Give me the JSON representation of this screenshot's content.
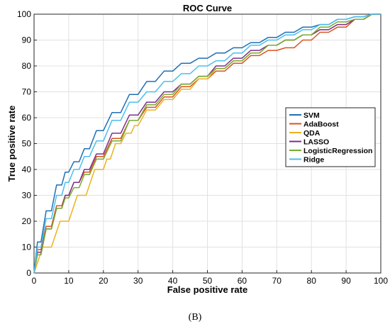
{
  "chart_data": {
    "type": "line",
    "title": "ROC Curve",
    "xlabel": "False positive rate",
    "ylabel": "True positive rate",
    "xlim": [
      0,
      100
    ],
    "ylim": [
      0,
      100
    ],
    "xticks": [
      0,
      10,
      20,
      30,
      40,
      50,
      60,
      70,
      80,
      90,
      100
    ],
    "yticks": [
      0,
      10,
      20,
      30,
      40,
      50,
      60,
      70,
      80,
      90,
      100
    ],
    "grid": true,
    "legend_position": "right",
    "series": [
      {
        "name": "SVM",
        "color": "#1f6fb4",
        "x": [
          0,
          2,
          5,
          8,
          10,
          13,
          16,
          20,
          25,
          30,
          35,
          40,
          45,
          50,
          55,
          60,
          65,
          70,
          75,
          80,
          85,
          90,
          95,
          100
        ],
        "y": [
          0,
          12,
          24,
          34,
          39,
          43,
          48,
          55,
          62,
          69,
          74,
          78,
          81,
          83,
          85,
          87,
          89,
          91,
          93,
          95,
          96,
          98,
          99,
          100
        ]
      },
      {
        "name": "AdaBoost",
        "color": "#d9531e",
        "x": [
          0,
          2,
          5,
          8,
          10,
          13,
          16,
          20,
          25,
          30,
          35,
          40,
          45,
          50,
          55,
          60,
          65,
          70,
          75,
          80,
          85,
          90,
          95,
          100
        ],
        "y": [
          0,
          9,
          18,
          26,
          30,
          35,
          39,
          45,
          52,
          59,
          64,
          68,
          72,
          75,
          78,
          81,
          84,
          86,
          87,
          90,
          93,
          95,
          98,
          100
        ]
      },
      {
        "name": "QDA",
        "color": "#edb120",
        "x": [
          0,
          5,
          10,
          15,
          20,
          22,
          25,
          28,
          30,
          35,
          40,
          45,
          50,
          55,
          60,
          65,
          70,
          75,
          80,
          85,
          90,
          95,
          100
        ],
        "y": [
          0,
          10,
          20,
          30,
          40,
          44,
          50,
          54,
          57,
          63,
          67,
          71,
          75,
          79,
          82,
          85,
          88,
          90,
          92,
          94,
          96,
          98,
          100
        ]
      },
      {
        "name": "LASSO",
        "color": "#7e2f8e",
        "x": [
          0,
          2,
          5,
          8,
          10,
          13,
          16,
          20,
          25,
          30,
          35,
          40,
          45,
          50,
          55,
          60,
          65,
          70,
          75,
          80,
          85,
          90,
          95,
          100
        ],
        "y": [
          0,
          8,
          17,
          25,
          30,
          35,
          40,
          46,
          54,
          61,
          66,
          70,
          73,
          76,
          80,
          83,
          86,
          88,
          90,
          92,
          94,
          96,
          98,
          100
        ]
      },
      {
        "name": "LogisticRegression",
        "color": "#77ac30",
        "x": [
          0,
          2,
          5,
          8,
          10,
          13,
          16,
          20,
          25,
          30,
          35,
          40,
          45,
          50,
          55,
          60,
          65,
          70,
          75,
          80,
          85,
          90,
          95,
          100
        ],
        "y": [
          0,
          7,
          17,
          25,
          29,
          33,
          38,
          44,
          51,
          59,
          65,
          69,
          73,
          76,
          79,
          82,
          85,
          88,
          90,
          92,
          95,
          97,
          98,
          100
        ]
      },
      {
        "name": "Ridge",
        "color": "#4dbeee",
        "x": [
          0,
          2,
          5,
          8,
          10,
          13,
          16,
          20,
          25,
          30,
          35,
          40,
          45,
          50,
          55,
          60,
          65,
          70,
          75,
          80,
          85,
          90,
          95,
          100
        ],
        "y": [
          0,
          10,
          21,
          30,
          35,
          40,
          45,
          51,
          59,
          66,
          70,
          74,
          77,
          80,
          82,
          85,
          88,
          90,
          92,
          94,
          96,
          98,
          99,
          100
        ]
      }
    ]
  },
  "caption": "(B)"
}
